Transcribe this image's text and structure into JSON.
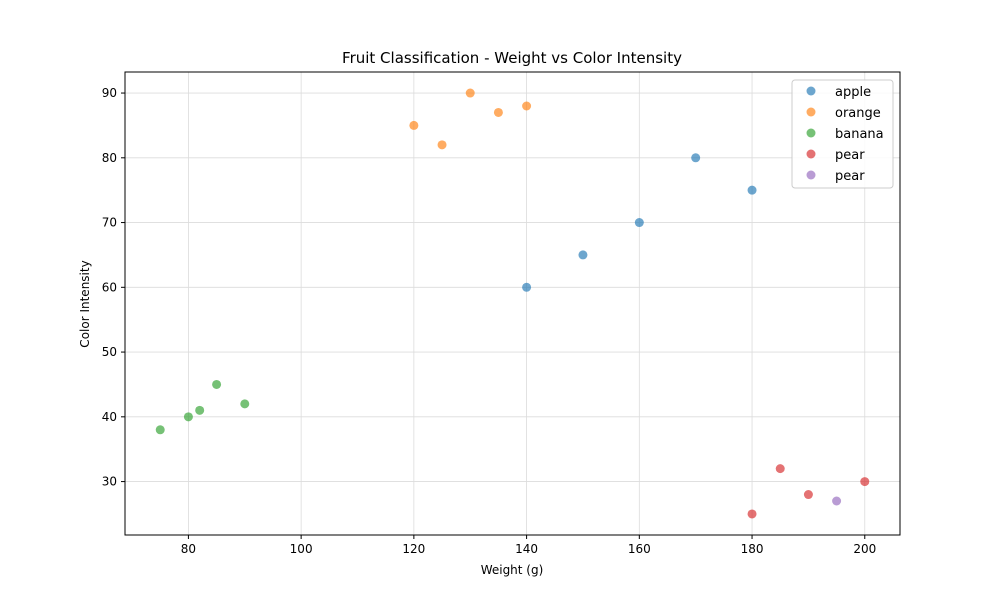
{
  "chart_data": {
    "type": "scatter",
    "title": "Fruit Classification - Weight vs Color Intensity",
    "xlabel": "Weight (g)",
    "ylabel": "Color Intensity",
    "xlim": [
      68.75,
      206.25
    ],
    "ylim": [
      21.75,
      93.25
    ],
    "xticks": [
      80,
      100,
      120,
      140,
      160,
      180,
      200
    ],
    "yticks": [
      30,
      40,
      50,
      60,
      70,
      80,
      90
    ],
    "grid": true,
    "legend_position": "top-right",
    "series": [
      {
        "name": "apple",
        "color": "#1f77b4",
        "points": [
          {
            "x": 140,
            "y": 60
          },
          {
            "x": 150,
            "y": 65
          },
          {
            "x": 160,
            "y": 70
          },
          {
            "x": 170,
            "y": 80
          },
          {
            "x": 180,
            "y": 75
          }
        ]
      },
      {
        "name": "orange",
        "color": "#ff7f0e",
        "points": [
          {
            "x": 120,
            "y": 85
          },
          {
            "x": 125,
            "y": 82
          },
          {
            "x": 130,
            "y": 90
          },
          {
            "x": 135,
            "y": 87
          },
          {
            "x": 140,
            "y": 88
          }
        ]
      },
      {
        "name": "banana",
        "color": "#2ca02c",
        "points": [
          {
            "x": 75,
            "y": 38
          },
          {
            "x": 80,
            "y": 40
          },
          {
            "x": 82,
            "y": 41
          },
          {
            "x": 85,
            "y": 45
          },
          {
            "x": 90,
            "y": 42
          }
        ]
      },
      {
        "name": "pear",
        "color": "#d62728",
        "points": [
          {
            "x": 180,
            "y": 25
          },
          {
            "x": 185,
            "y": 32
          },
          {
            "x": 190,
            "y": 28
          },
          {
            "x": 200,
            "y": 30
          }
        ]
      },
      {
        "name": "pear",
        "color": "#9467bd",
        "points": [
          {
            "x": 195,
            "y": 27
          }
        ]
      }
    ]
  }
}
